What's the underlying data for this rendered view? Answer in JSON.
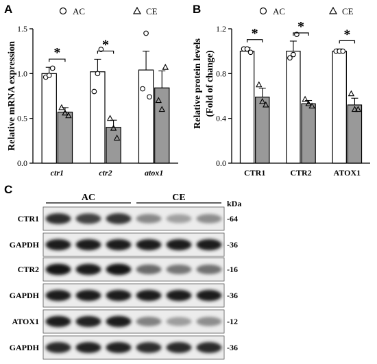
{
  "panels": {
    "a": "A",
    "b": "B",
    "c": "C"
  },
  "legend": [
    {
      "label": "AC",
      "marker": "circle",
      "fill": "#ffffff"
    },
    {
      "label": "CE",
      "marker": "triangle",
      "fill": "#999999"
    }
  ],
  "colors": {
    "ac_bar": "#ffffff",
    "ce_bar": "#999999",
    "axis": "#000000"
  },
  "chart_data": [
    {
      "type": "bar",
      "ylabel": "Relative mRNA expression",
      "categories": [
        "ctr1",
        "ctr2",
        "atox1"
      ],
      "category_style": "italic",
      "ylim": [
        0,
        1.5
      ],
      "yticks": [
        "0.0",
        "0.5",
        "1.0",
        "1.5"
      ],
      "series": [
        {
          "name": "AC",
          "values": [
            1.0,
            1.02,
            1.04
          ],
          "errors": [
            0.07,
            0.14,
            0.21
          ],
          "points": [
            [
              0.96,
              0.98,
              1.06
            ],
            [
              0.8,
              1.0,
              1.27
            ],
            [
              0.83,
              1.45,
              0.74
            ]
          ]
        },
        {
          "name": "CE",
          "values": [
            0.57,
            0.4,
            0.84
          ],
          "errors": [
            0.05,
            0.08,
            0.19
          ],
          "points": [
            [
              0.62,
              0.56,
              0.53
            ],
            [
              0.5,
              0.39,
              0.28
            ],
            [
              0.7,
              0.6,
              1.07
            ]
          ]
        }
      ],
      "significance": [
        "*",
        "*",
        ""
      ],
      "grid": false
    },
    {
      "type": "bar",
      "ylabel_lines": [
        "Relative protein levels",
        "(Fold of change)"
      ],
      "categories": [
        "CTR1",
        "CTR2",
        "ATOX1"
      ],
      "category_style": "bold",
      "ylim": [
        0,
        1.2
      ],
      "yticks": [
        "0.0",
        "0.4",
        "0.8",
        "1.2"
      ],
      "series": [
        {
          "name": "AC",
          "values": [
            1.0,
            1.0,
            1.0
          ],
          "errors": [
            0.03,
            0.09,
            0.02
          ],
          "points": [
            [
              1.02,
              1.02,
              0.99
            ],
            [
              0.94,
              0.97,
              1.15
            ],
            [
              1.0,
              1.0,
              1.0
            ]
          ]
        },
        {
          "name": "CE",
          "values": [
            0.59,
            0.53,
            0.52
          ],
          "errors": [
            0.08,
            0.03,
            0.06
          ],
          "points": [
            [
              0.7,
              0.55,
              0.52
            ],
            [
              0.57,
              0.53,
              0.51
            ],
            [
              0.62,
              0.48,
              0.48
            ]
          ]
        }
      ],
      "significance": [
        "*",
        "*",
        "*"
      ],
      "grid": false
    }
  ],
  "blot": {
    "groups": [
      "AC",
      "CE"
    ],
    "unit": "kDa",
    "rows": [
      {
        "label": "CTR1",
        "size": "-64",
        "intensity": [
          0.8,
          0.72,
          0.78,
          0.42,
          0.32,
          0.4
        ]
      },
      {
        "label": "GAPDH",
        "size": "-36",
        "intensity": [
          0.88,
          0.88,
          0.88,
          0.88,
          0.88,
          0.88
        ]
      },
      {
        "label": "CTR2",
        "size": "-16",
        "intensity": [
          0.92,
          0.88,
          0.9,
          0.55,
          0.5,
          0.52
        ]
      },
      {
        "label": "GAPDH",
        "size": "-36",
        "intensity": [
          0.88,
          0.88,
          0.88,
          0.88,
          0.88,
          0.88
        ]
      },
      {
        "label": "ATOX1",
        "size": "-12",
        "intensity": [
          0.88,
          0.85,
          0.88,
          0.45,
          0.33,
          0.4
        ]
      },
      {
        "label": "GAPDH",
        "size": "-36",
        "intensity": [
          0.82,
          0.85,
          0.85,
          0.8,
          0.82,
          0.82
        ]
      }
    ]
  }
}
